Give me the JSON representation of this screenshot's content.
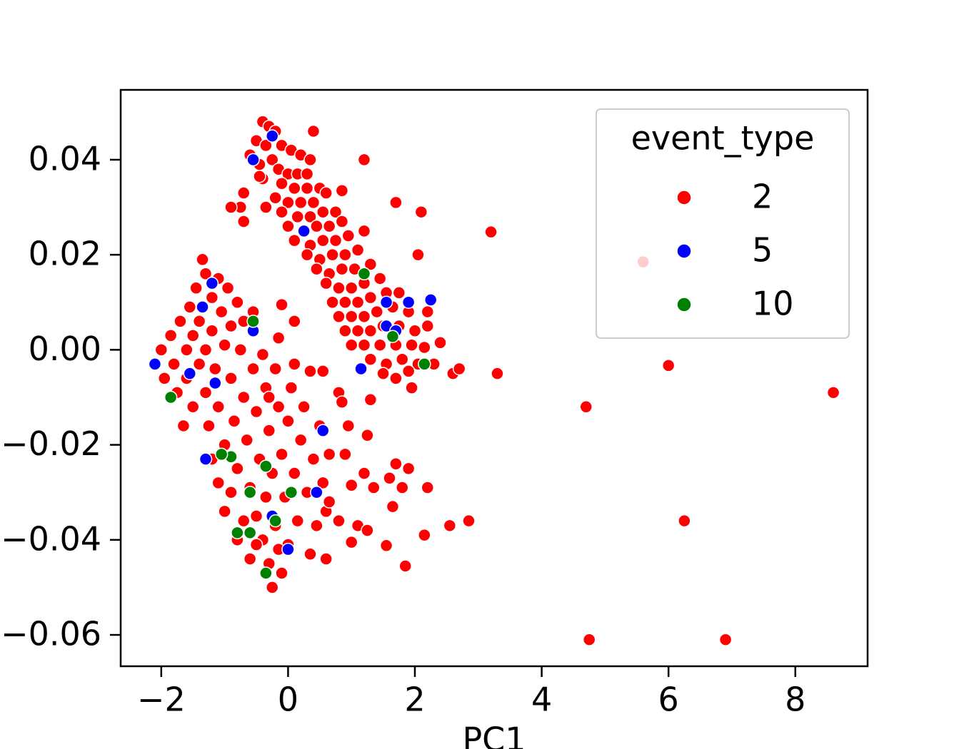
{
  "chart_data": {
    "type": "scatter",
    "x_label": "PC1",
    "legend_title": "event_type",
    "legend_loc": "upper right",
    "xlim": [
      -2.64,
      9.14
    ],
    "ylim": [
      -0.0666,
      0.0547
    ],
    "xticks": [
      {
        "value": -2,
        "label": "−2"
      },
      0,
      2,
      4,
      6,
      8
    ],
    "yticks": [
      {
        "value": -0.06,
        "label": "−0.06"
      },
      {
        "value": -0.04,
        "label": "−0.04"
      },
      {
        "value": -0.02,
        "label": "−0.02"
      },
      {
        "value": 0,
        "label": "0.00"
      },
      0.02,
      0.04
    ],
    "series": [
      {
        "name": "2",
        "color": "#ff0000",
        "x": [
          -0.4,
          -0.3,
          -0.2,
          -0.5,
          -0.35,
          -0.1,
          0.05,
          -0.6,
          -0.45,
          -0.25,
          0.2,
          0.35,
          -0.15,
          0,
          0.15,
          0.3,
          -0.4,
          -0.1,
          0.1,
          0.3,
          0.5,
          -0.2,
          0,
          0.2,
          0.4,
          0.6,
          -0.35,
          -0.1,
          0.15,
          0.35,
          0.55,
          0.75,
          0,
          0.25,
          0.45,
          0.65,
          0.85,
          0.1,
          0.35,
          0.55,
          0.75,
          0.95,
          0.3,
          0.5,
          0.7,
          0.9,
          1.1,
          0.45,
          0.65,
          0.85,
          1.05,
          1.3,
          0.6,
          0.8,
          1,
          1.2,
          1.45,
          0.7,
          0.9,
          1.1,
          1.3,
          1.55,
          1.75,
          0.8,
          1,
          1.2,
          1.4,
          1.65,
          1.9,
          2.2,
          0.9,
          1.1,
          1.3,
          1.5,
          1.75,
          2,
          2.2,
          1,
          1.2,
          1.45,
          1.7,
          1.95,
          2.15,
          1.3,
          1.55,
          1.8,
          2.05,
          1.5,
          1.7,
          1.9,
          2.3,
          1.95,
          -2.1,
          -2,
          -1.95,
          -1.85,
          -1.8,
          -1.75,
          -1.7,
          -1.6,
          -1.6,
          -1.55,
          -1.5,
          -1.5,
          -1.45,
          -1.4,
          -1.4,
          -1.35,
          -1.3,
          -1.3,
          -1.3,
          -1.25,
          -1.2,
          -1.2,
          -1.15,
          -1.1,
          -1.1,
          -1.05,
          -1,
          -1,
          -0.95,
          -0.9,
          -0.9,
          -0.85,
          -0.8,
          -0.8,
          -0.75,
          -0.7,
          -0.7,
          -0.65,
          -0.6,
          -0.55,
          -0.55,
          -0.5,
          -0.5,
          -0.45,
          -0.4,
          -0.4,
          -0.35,
          -0.35,
          -0.3,
          -0.3,
          -0.25,
          -0.25,
          -0.2,
          -0.2,
          -0.15,
          -0.1,
          -0.1,
          -0.05,
          0,
          0,
          0.05,
          0.1,
          0.15,
          0.2,
          0.25,
          0.3,
          0.35,
          0.4,
          0.45,
          0.5,
          0.55,
          0.6,
          0.6,
          -1.1,
          -1,
          -0.8,
          -0.6,
          -1.2,
          -0.9,
          -0.7,
          -0.5,
          -0.3,
          -0.15,
          -1.65,
          3.2,
          3.3,
          4.7,
          6,
          8.6,
          6.25,
          4.75,
          6.9,
          1.85,
          2.85,
          2.55,
          2.15,
          1,
          1.55,
          1.65,
          2.2,
          1.8,
          1.9,
          1.35,
          1.7,
          1.6,
          1.2,
          1.3,
          1.25,
          0.8,
          0.85,
          0.95,
          1,
          1.1,
          1.25,
          0.8,
          0.65,
          0.9,
          0.65,
          0.35,
          0.1,
          0.55,
          -0.1,
          0.1,
          -0.15,
          1.2,
          0.4,
          1.7,
          2.1,
          2.05,
          1.2,
          2.4,
          2.6,
          2.7,
          0.85,
          -0.7,
          -0.7,
          -0.75,
          -0.9,
          -0.45,
          5.6
        ],
        "values": [
          0.048,
          0.047,
          0.046,
          0.044,
          0.043,
          0.043,
          0.042,
          0.041,
          0.039,
          0.04,
          0.041,
          0.04,
          0.038,
          0.037,
          0.037,
          0.037,
          0.036,
          0.035,
          0.034,
          0.034,
          0.034,
          0.032,
          0.031,
          0.031,
          0.031,
          0.033,
          0.03,
          0.029,
          0.028,
          0.028,
          0.029,
          0.029,
          0.026,
          0.025,
          0.026,
          0.026,
          0.027,
          0.023,
          0.022,
          0.023,
          0.023,
          0.024,
          0.02,
          0.019,
          0.02,
          0.02,
          0.021,
          0.017,
          0.016,
          0.017,
          0.017,
          0.018,
          0.014,
          0.013,
          0.013,
          0.014,
          0.015,
          0.01,
          0.01,
          0.01,
          0.011,
          0.012,
          0.012,
          0.007,
          0.007,
          0.007,
          0.008,
          0.009,
          0.008,
          0.008,
          0.004,
          0.004,
          0.004,
          0.005,
          0.005,
          0.004,
          0.005,
          0.001,
          0.001,
          0.001,
          0.001,
          0.001,
          0.0005,
          -0.002,
          -0.003,
          -0.002,
          -0.003,
          -0.005,
          -0.006,
          -0.0045,
          -0.003,
          -0.008,
          -0.003,
          0,
          -0.006,
          0.003,
          -0.003,
          -0.009,
          0.006,
          0,
          -0.006,
          0.009,
          0.003,
          -0.012,
          0.013,
          -0.003,
          0.006,
          0.019,
          0.016,
          0,
          -0.009,
          -0.016,
          0.011,
          0.004,
          -0.004,
          0.015,
          -0.012,
          0.008,
          0.001,
          -0.02,
          0.013,
          -0.006,
          0.005,
          -0.015,
          0.01,
          -0.025,
          0,
          -0.01,
          0.006,
          -0.019,
          -0.029,
          0.008,
          -0.004,
          -0.013,
          -0.035,
          -0.023,
          -0.001,
          -0.04,
          -0.008,
          -0.031,
          -0.017,
          -0.045,
          -0.05,
          -0.026,
          -0.004,
          -0.037,
          -0.012,
          -0.022,
          -0.047,
          -0.031,
          -0.041,
          -0.015,
          -0.008,
          -0.026,
          -0.036,
          -0.019,
          -0.012,
          -0.03,
          -0.043,
          -0.023,
          -0.037,
          -0.016,
          -0.028,
          -0.044,
          -0.034,
          -0.028,
          -0.034,
          -0.04,
          -0.044,
          -0.023,
          -0.03,
          -0.036,
          -0.041,
          -0.01,
          -0.042,
          -0.016,
          0.0248,
          -0.005,
          -0.012,
          -0.0033,
          -0.009,
          -0.036,
          -0.061,
          -0.061,
          -0.0455,
          -0.036,
          -0.037,
          -0.039,
          -0.0405,
          -0.0412,
          -0.033,
          -0.029,
          -0.029,
          -0.025,
          -0.029,
          -0.024,
          -0.027,
          -0.026,
          -0.0105,
          -0.018,
          -0.009,
          -0.011,
          -0.016,
          -0.0285,
          -0.037,
          -0.038,
          -0.036,
          -0.022,
          -0.022,
          -0.032,
          -0.0045,
          -0.003,
          -0.0045,
          0.0095,
          0.006,
          0.0025,
          0.04,
          0.046,
          0.031,
          0.029,
          0.02,
          0.025,
          0.0015,
          -0.005,
          -0.004,
          0.0335,
          0.033,
          0.027,
          0.03,
          0.03,
          0.0365,
          0.0185
        ]
      },
      {
        "name": "5",
        "color": "#0000ff",
        "x": [
          -0.25,
          -0.55,
          0.25,
          -1.35,
          -1.2,
          -0.55,
          -1.55,
          -1.15,
          -1.3,
          0.55,
          0.45,
          1.15,
          1.55,
          1.9,
          2.25,
          1.55,
          1.7,
          0,
          -0.25,
          -2.1
        ],
        "values": [
          0.045,
          0.04,
          0.025,
          0.009,
          0.014,
          0.004,
          -0.005,
          -0.007,
          -0.023,
          -0.017,
          -0.03,
          -0.004,
          0.01,
          0.01,
          0.0105,
          0.005,
          0.004,
          -0.042,
          -0.035,
          -0.003
        ]
      },
      {
        "name": "10",
        "color": "#008000",
        "x": [
          -0.55,
          1.2,
          1.65,
          2.15,
          -0.9,
          -1.05,
          -0.35,
          -0.8,
          -0.6,
          -0.2,
          -0.35,
          -1.85,
          -0.6,
          0.05
        ],
        "values": [
          0.006,
          0.016,
          0.0028,
          -0.003,
          -0.0225,
          -0.022,
          -0.0245,
          -0.0385,
          -0.0385,
          -0.036,
          -0.047,
          -0.01,
          -0.03,
          -0.03
        ]
      }
    ]
  }
}
